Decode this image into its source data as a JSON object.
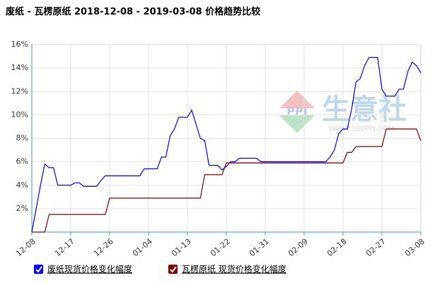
{
  "chart_data": {
    "type": "line",
    "title": "废纸 - 瓦楞原纸 2018-12-08 - 2019-03-08 价格趋势比较",
    "watermark": [
      "PPI",
      "生意社",
      "WWW.100PPI.COM"
    ],
    "categories": [
      "12-08",
      null,
      null,
      null,
      null,
      null,
      null,
      null,
      null,
      "12-17",
      null,
      null,
      null,
      null,
      null,
      null,
      null,
      null,
      "12-26",
      null,
      null,
      null,
      null,
      null,
      null,
      null,
      null,
      "01-04",
      null,
      null,
      null,
      null,
      null,
      null,
      null,
      null,
      "01-13",
      null,
      null,
      null,
      null,
      null,
      null,
      null,
      null,
      "01-22",
      null,
      null,
      null,
      null,
      null,
      null,
      null,
      null,
      "01-31",
      null,
      null,
      null,
      null,
      null,
      null,
      null,
      null,
      "02-09",
      null,
      null,
      null,
      null,
      null,
      null,
      null,
      null,
      "02-18",
      null,
      null,
      null,
      null,
      null,
      null,
      null,
      null,
      "02-27",
      null,
      null,
      null,
      null,
      null,
      null,
      null,
      null,
      "03-08"
    ],
    "series": [
      {
        "name": "废纸现货价格变化幅度",
        "color": "#0000ff",
        "values": [
          0,
          2,
          4,
          5.8,
          5.5,
          5.5,
          4,
          4,
          4,
          4,
          4.2,
          4.2,
          3.9,
          3.9,
          3.9,
          3.9,
          4.4,
          4.8,
          4.8,
          4.8,
          4.8,
          4.8,
          4.8,
          4.8,
          4.8,
          4.8,
          5.4,
          5.4,
          5.4,
          5.4,
          6.4,
          6.4,
          8.2,
          8.8,
          9.8,
          9.8,
          9.8,
          10.4,
          9.2,
          8,
          7.8,
          5.7,
          5.7,
          5.7,
          5.3,
          5.6,
          6,
          6,
          6.3,
          6.3,
          6.3,
          6.3,
          6.3,
          6,
          6,
          6,
          6,
          6,
          6,
          6,
          6,
          6,
          6,
          6,
          6,
          6,
          6,
          6,
          6,
          6.4,
          7,
          8.4,
          8.8,
          8.8,
          10.5,
          12.8,
          13.1,
          14.2,
          14.9,
          14.9,
          14.9,
          12.2,
          11.6,
          11.6,
          11.6,
          12.2,
          12.2,
          13.7,
          14.5,
          14.2,
          13.6
        ]
      },
      {
        "name": "瓦楞原纸 现货价格变化幅度",
        "color": "#800000",
        "values": [
          0,
          0,
          0,
          0,
          1.5,
          1.5,
          1.5,
          1.5,
          1.5,
          1.5,
          1.5,
          1.5,
          1.5,
          1.5,
          1.5,
          1.5,
          1.5,
          1.5,
          2.9,
          2.9,
          2.9,
          2.9,
          2.9,
          2.9,
          2.9,
          2.9,
          2.9,
          2.9,
          2.9,
          2.9,
          2.9,
          2.9,
          2.9,
          2.9,
          2.9,
          2.9,
          2.9,
          2.9,
          2.9,
          2.9,
          4.9,
          4.9,
          4.9,
          4.9,
          4.9,
          5.9,
          5.9,
          5.9,
          5.9,
          5.9,
          5.9,
          5.9,
          5.9,
          5.9,
          5.9,
          5.9,
          5.9,
          5.9,
          5.9,
          5.9,
          5.9,
          5.9,
          5.9,
          5.9,
          5.9,
          5.9,
          5.9,
          5.9,
          5.9,
          5.9,
          5.9,
          5.9,
          5.9,
          6.8,
          6.8,
          7.3,
          7.3,
          7.3,
          7.3,
          7.3,
          7.3,
          7.3,
          8.8,
          8.8,
          8.8,
          8.8,
          8.8,
          8.8,
          8.8,
          8.8,
          7.8
        ]
      }
    ],
    "ylim": [
      0,
      16
    ],
    "yticks": [
      {
        "value": 2,
        "label": "2%"
      },
      {
        "value": 4,
        "label": "4%"
      },
      {
        "value": 6,
        "label": "6%"
      },
      {
        "value": 8,
        "label": "8%"
      },
      {
        "value": 10,
        "label": "10%"
      },
      {
        "value": 12,
        "label": "12%"
      },
      {
        "value": 14,
        "label": "14%"
      },
      {
        "value": 16,
        "label": "16%"
      }
    ],
    "grid": true
  }
}
